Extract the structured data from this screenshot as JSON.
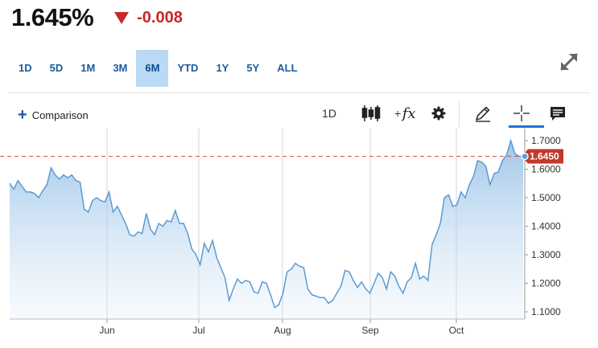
{
  "quote": {
    "price": "1.645%",
    "change": "-0.008",
    "change_color": "#c62828"
  },
  "ranges": [
    {
      "label": "1D",
      "active": false
    },
    {
      "label": "5D",
      "active": false
    },
    {
      "label": "1M",
      "active": false
    },
    {
      "label": "3M",
      "active": false
    },
    {
      "label": "6M",
      "active": true
    },
    {
      "label": "YTD",
      "active": false
    },
    {
      "label": "1Y",
      "active": false
    },
    {
      "label": "5Y",
      "active": false
    },
    {
      "label": "ALL",
      "active": false
    }
  ],
  "toolbar": {
    "comparison_label": "Comparison",
    "interval_label": "1D",
    "candle_icon": "candlestick-icon",
    "fx_label": "fx",
    "fx_sup": "+",
    "gear_icon": "gear-icon",
    "draw_icon": "pencil-icon",
    "crosshair_icon": "crosshair-icon",
    "news_icon": "news-icon"
  },
  "chart_data": {
    "type": "area",
    "x_labels": [
      "Jun",
      "Jul",
      "Aug",
      "Sep",
      "Oct"
    ],
    "y_ticks": [
      "1.7000",
      "1.6000",
      "1.5000",
      "1.4000",
      "1.3000",
      "1.2000",
      "1.1000"
    ],
    "y_range": [
      1.1,
      1.7
    ],
    "current_value_label": "1.6450",
    "current_value": 1.645,
    "line_color": "#5a9bd4",
    "label_color": "#c0392b",
    "grid": "vertical",
    "values": [
      1.55,
      1.53,
      1.56,
      1.54,
      1.52,
      1.52,
      1.515,
      1.5,
      1.525,
      1.545,
      1.605,
      1.58,
      1.565,
      1.58,
      1.57,
      1.58,
      1.56,
      1.555,
      1.46,
      1.45,
      1.49,
      1.5,
      1.49,
      1.485,
      1.52,
      1.45,
      1.47,
      1.44,
      1.41,
      1.37,
      1.365,
      1.38,
      1.375,
      1.445,
      1.39,
      1.37,
      1.41,
      1.4,
      1.42,
      1.415,
      1.455,
      1.41,
      1.41,
      1.375,
      1.32,
      1.3,
      1.265,
      1.34,
      1.31,
      1.35,
      1.29,
      1.255,
      1.22,
      1.14,
      1.18,
      1.215,
      1.2,
      1.21,
      1.205,
      1.17,
      1.165,
      1.205,
      1.2,
      1.16,
      1.115,
      1.125,
      1.165,
      1.24,
      1.25,
      1.27,
      1.26,
      1.255,
      1.18,
      1.16,
      1.155,
      1.15,
      1.15,
      1.13,
      1.14,
      1.165,
      1.19,
      1.245,
      1.24,
      1.21,
      1.185,
      1.205,
      1.18,
      1.165,
      1.2,
      1.235,
      1.22,
      1.18,
      1.24,
      1.225,
      1.19,
      1.165,
      1.205,
      1.22,
      1.27,
      1.215,
      1.225,
      1.21,
      1.335,
      1.37,
      1.41,
      1.5,
      1.51,
      1.47,
      1.475,
      1.52,
      1.5,
      1.545,
      1.575,
      1.63,
      1.625,
      1.61,
      1.545,
      1.585,
      1.59,
      1.63,
      1.65,
      1.7,
      1.655,
      1.645,
      1.645
    ]
  }
}
